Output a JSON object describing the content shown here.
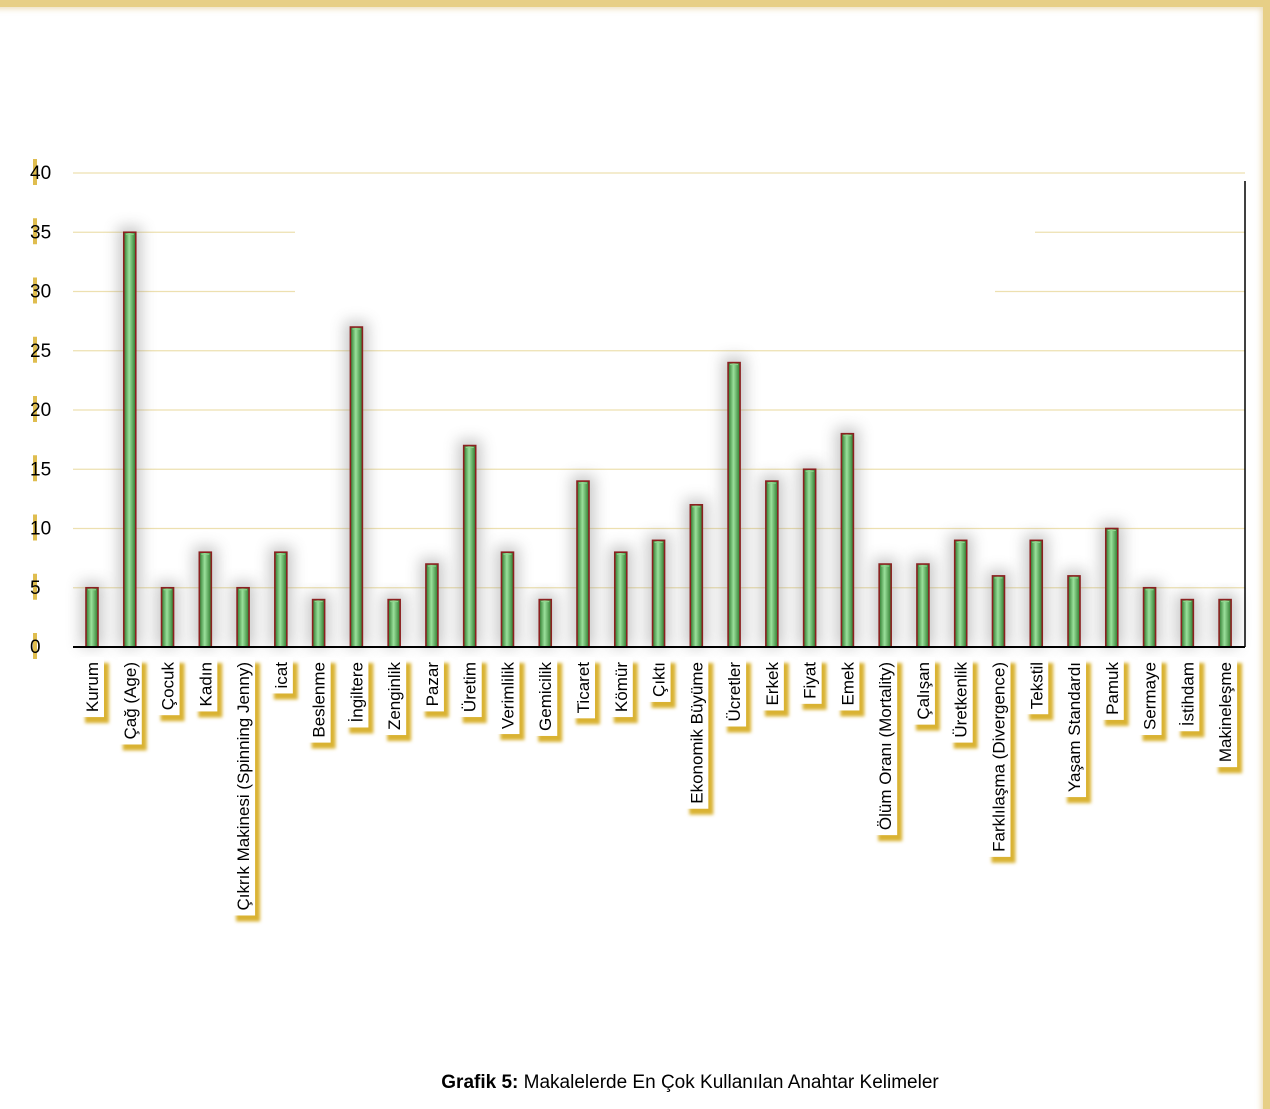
{
  "chart_data": {
    "type": "bar",
    "categories": [
      "Kurum",
      "Çağ (Age)",
      "Çocuk",
      "Kadın",
      "Çıkrık Makinesi (Spinning Jenny)",
      "icat",
      "Beslenme",
      "İngiltere",
      "Zenginlik",
      "Pazar",
      "Üretim",
      "Verimlilik",
      "Gemicilik",
      "Ticaret",
      "Kömür",
      "Çıktı",
      "Ekonomik Büyüme",
      "Ücretler",
      "Erkek",
      "Fiyat",
      "Emek",
      "Ölüm Oranı (Mortality)",
      "Çalışan",
      "Üretkenlik",
      "Farklılaşma (Divergence)",
      "Tekstil",
      "Yaşam Standardı",
      "Pamuk",
      "Sermaye",
      "İstihdam",
      "Makineleşme"
    ],
    "values": [
      5,
      35,
      5,
      8,
      5,
      8,
      4,
      27,
      4,
      7,
      17,
      8,
      4,
      14,
      8,
      9,
      12,
      24,
      14,
      15,
      18,
      7,
      7,
      9,
      6,
      9,
      6,
      10,
      5,
      4,
      4
    ],
    "ylim": [
      0,
      40
    ],
    "yticks": [
      "0",
      "5",
      "10",
      "15",
      "20",
      "25",
      "30",
      "35",
      "40"
    ],
    "grid": true,
    "legend": "none",
    "colors": {
      "bar_fill": "#3f9a3f",
      "bar_highlight": "#8fd88f",
      "bar_edge": "#8b2020",
      "gridline": "#ede0b0",
      "label_bg": "#ffffff",
      "label_shadow": "#d9b230",
      "axis": "#000000"
    }
  },
  "caption": {
    "label": "Grafik 5:",
    "text": " Makalelerde En Çok Kullanılan Anahtar Kelimeler"
  }
}
